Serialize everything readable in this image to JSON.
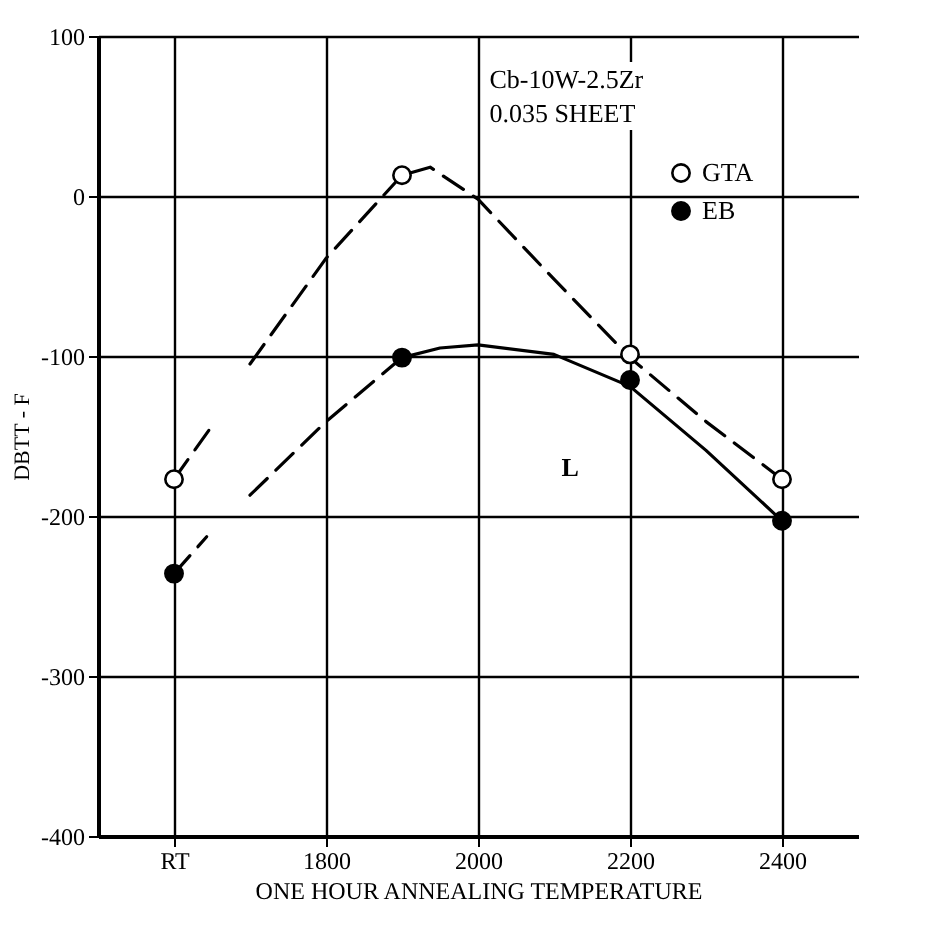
{
  "chart_data": {
    "type": "scatter",
    "xlabel": "ONE HOUR ANNEALING TEMPERATURE",
    "ylabel": "DBTT - F",
    "annotations": [
      "Cb-10W-2.5Zr",
      "0.035 SHEET",
      "L"
    ],
    "xlim": [
      1500,
      2500
    ],
    "xticks": [
      {
        "value": 1600,
        "label": "RT"
      },
      1800,
      2000,
      2200,
      2400
    ],
    "ylim": [
      -400,
      100
    ],
    "yticks": [
      -400,
      -300,
      -200,
      -100,
      0,
      100
    ],
    "grid": true,
    "legend": "top right",
    "marker": "circle",
    "series": [
      {
        "type": "line",
        "color": "#000000",
        "line_style": "dashed",
        "marker": "none",
        "x": [
          1600,
          1648,
          null,
          1700,
          1800,
          1900,
          1937,
          2000,
          2100,
          2200,
          2300,
          2400
        ],
        "values": [
          -177,
          -145,
          null,
          -105,
          -39,
          13,
          18,
          -2,
          -52,
          -101,
          -141,
          -177
        ]
      },
      {
        "type": "line",
        "color": "#000000",
        "line_style": "dashed",
        "marker": "none",
        "x": [
          1600,
          1643,
          null,
          1700,
          1800,
          1900
        ],
        "values": [
          -236,
          -213,
          null,
          -187,
          -141,
          -101
        ]
      },
      {
        "type": "line",
        "color": "#000000",
        "line_style": "solid",
        "marker": "none",
        "x": [
          1900,
          1950,
          2000,
          2100,
          2200,
          2300,
          2400
        ],
        "values": [
          -101,
          -95,
          -93,
          -99,
          -119,
          -159,
          -203
        ]
      },
      {
        "type": "scatter",
        "name": "GTA",
        "color": "#ffffff",
        "x": [
          1600,
          1900,
          2200,
          2400
        ],
        "values": [
          -177,
          13,
          -99,
          -177
        ]
      },
      {
        "type": "scatter",
        "name": "EB",
        "color": "#000000",
        "x": [
          1600,
          1900,
          2200,
          2400
        ],
        "values": [
          -236,
          -101,
          -115,
          -203
        ]
      }
    ]
  }
}
